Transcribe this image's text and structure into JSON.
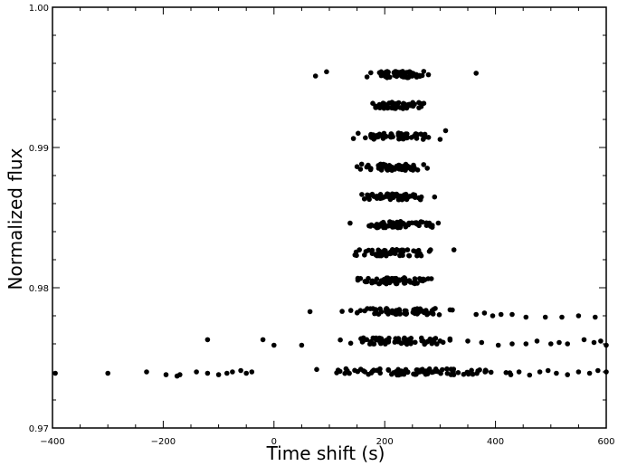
{
  "chart_data": {
    "type": "scatter",
    "title": "",
    "xlabel": "Time shift (s)",
    "ylabel": "Normalized flux",
    "xlim": [
      -400,
      600
    ],
    "ylim": [
      0.97,
      1.0
    ],
    "x_ticks": [
      -400,
      -200,
      0,
      200,
      400,
      600
    ],
    "x_tick_labels": [
      "−400",
      "−200",
      "0",
      "200",
      "400",
      "600"
    ],
    "y_ticks": [
      0.97,
      0.98,
      0.99,
      1.0
    ],
    "y_tick_labels": [
      "0.97",
      "0.98",
      "0.99",
      "1.00"
    ],
    "grid": false,
    "marker_color": "#000000",
    "bands": [
      {
        "y": 0.9952,
        "x_min": 160,
        "x_max": 295,
        "count": 70,
        "outliers": [
          [
            75,
            0.9951
          ],
          [
            95,
            0.9954
          ],
          [
            365,
            0.9953
          ]
        ]
      },
      {
        "y": 0.993,
        "x_min": 165,
        "x_max": 285,
        "count": 55,
        "outliers": []
      },
      {
        "y": 0.9908,
        "x_min": 130,
        "x_max": 300,
        "count": 60,
        "outliers": [
          [
            310,
            0.9912
          ]
        ]
      },
      {
        "y": 0.9886,
        "x_min": 150,
        "x_max": 285,
        "count": 55,
        "outliers": []
      },
      {
        "y": 0.9865,
        "x_min": 145,
        "x_max": 290,
        "count": 60,
        "outliers": []
      },
      {
        "y": 0.9845,
        "x_min": 135,
        "x_max": 305,
        "count": 60,
        "outliers": []
      },
      {
        "y": 0.9825,
        "x_min": 130,
        "x_max": 300,
        "count": 60,
        "outliers": [
          [
            325,
            0.9827
          ]
        ]
      },
      {
        "y": 0.9805,
        "x_min": 125,
        "x_max": 305,
        "count": 60,
        "outliers": []
      },
      {
        "y": 0.9783,
        "x_min": 115,
        "x_max": 350,
        "count": 65,
        "outliers": [
          [
            65,
            0.9783
          ],
          [
            365,
            0.9781
          ],
          [
            380,
            0.9782
          ],
          [
            395,
            0.978
          ],
          [
            410,
            0.9781
          ],
          [
            430,
            0.9781
          ],
          [
            455,
            0.9779
          ],
          [
            490,
            0.9779
          ],
          [
            520,
            0.9779
          ],
          [
            550,
            0.978
          ],
          [
            580,
            0.9779
          ]
        ]
      },
      {
        "y": 0.9762,
        "x_min": 80,
        "x_max": 340,
        "count": 70,
        "outliers": [
          [
            -120,
            0.9763
          ],
          [
            -20,
            0.9763
          ],
          [
            0,
            0.9759
          ],
          [
            50,
            0.9759
          ],
          [
            350,
            0.9762
          ],
          [
            375,
            0.9761
          ],
          [
            405,
            0.9759
          ],
          [
            430,
            0.976
          ],
          [
            455,
            0.976
          ],
          [
            475,
            0.9762
          ],
          [
            500,
            0.976
          ],
          [
            515,
            0.9761
          ],
          [
            530,
            0.976
          ],
          [
            560,
            0.9763
          ],
          [
            578,
            0.9761
          ],
          [
            590,
            0.9762
          ],
          [
            600,
            0.9759
          ]
        ]
      },
      {
        "y": 0.974,
        "x_min": 10,
        "x_max": 470,
        "count": 90,
        "outliers": [
          [
            -395,
            0.9739
          ],
          [
            -300,
            0.9739
          ],
          [
            -230,
            0.974
          ],
          [
            -195,
            0.9738
          ],
          [
            -175,
            0.9737
          ],
          [
            -170,
            0.9738
          ],
          [
            -140,
            0.974
          ],
          [
            -120,
            0.9739
          ],
          [
            -100,
            0.9738
          ],
          [
            -85,
            0.9739
          ],
          [
            -75,
            0.974
          ],
          [
            -60,
            0.9741
          ],
          [
            -50,
            0.9739
          ],
          [
            -40,
            0.974
          ],
          [
            480,
            0.974
          ],
          [
            495,
            0.9741
          ],
          [
            510,
            0.9739
          ],
          [
            530,
            0.9738
          ],
          [
            550,
            0.974
          ],
          [
            570,
            0.9739
          ],
          [
            585,
            0.9741
          ],
          [
            600,
            0.974
          ]
        ]
      }
    ]
  }
}
